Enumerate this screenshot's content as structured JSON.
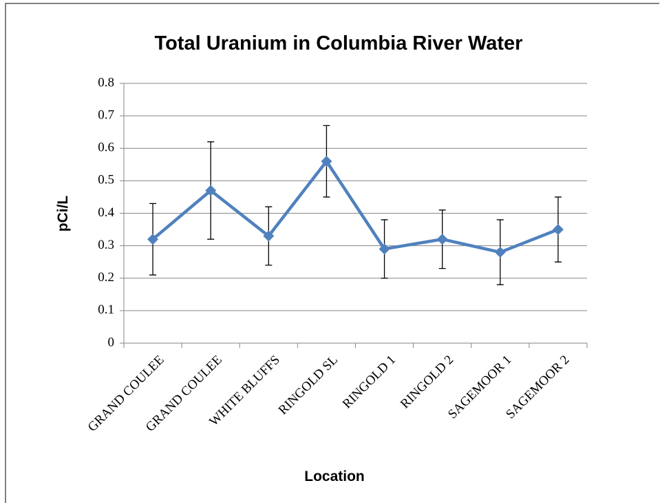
{
  "chart_data": {
    "type": "line",
    "title": "Total Uranium in Columbia River Water",
    "x_label": "Location",
    "y_label": "pCi/L",
    "categories": [
      "GRAND COULEE",
      "GRAND COULEE",
      "WHITE BLUFFS",
      "RINGOLD SL",
      "RINGOLD 1",
      "RINGOLD 2",
      "SAGEMOOR 1",
      "SAGEMOOR 2"
    ],
    "series": [
      {
        "name": "Total Uranium",
        "color": "#4f81bd",
        "values": [
          0.32,
          0.47,
          0.33,
          0.56,
          0.29,
          0.32,
          0.28,
          0.35
        ],
        "errors": [
          0.11,
          0.15,
          0.09,
          0.11,
          0.09,
          0.09,
          0.1,
          0.1
        ]
      }
    ],
    "ylim": [
      0,
      0.8
    ],
    "yticks": [
      0,
      0.1,
      0.2,
      0.3,
      0.4,
      0.5,
      0.6,
      0.7,
      0.8
    ],
    "grid": true
  }
}
